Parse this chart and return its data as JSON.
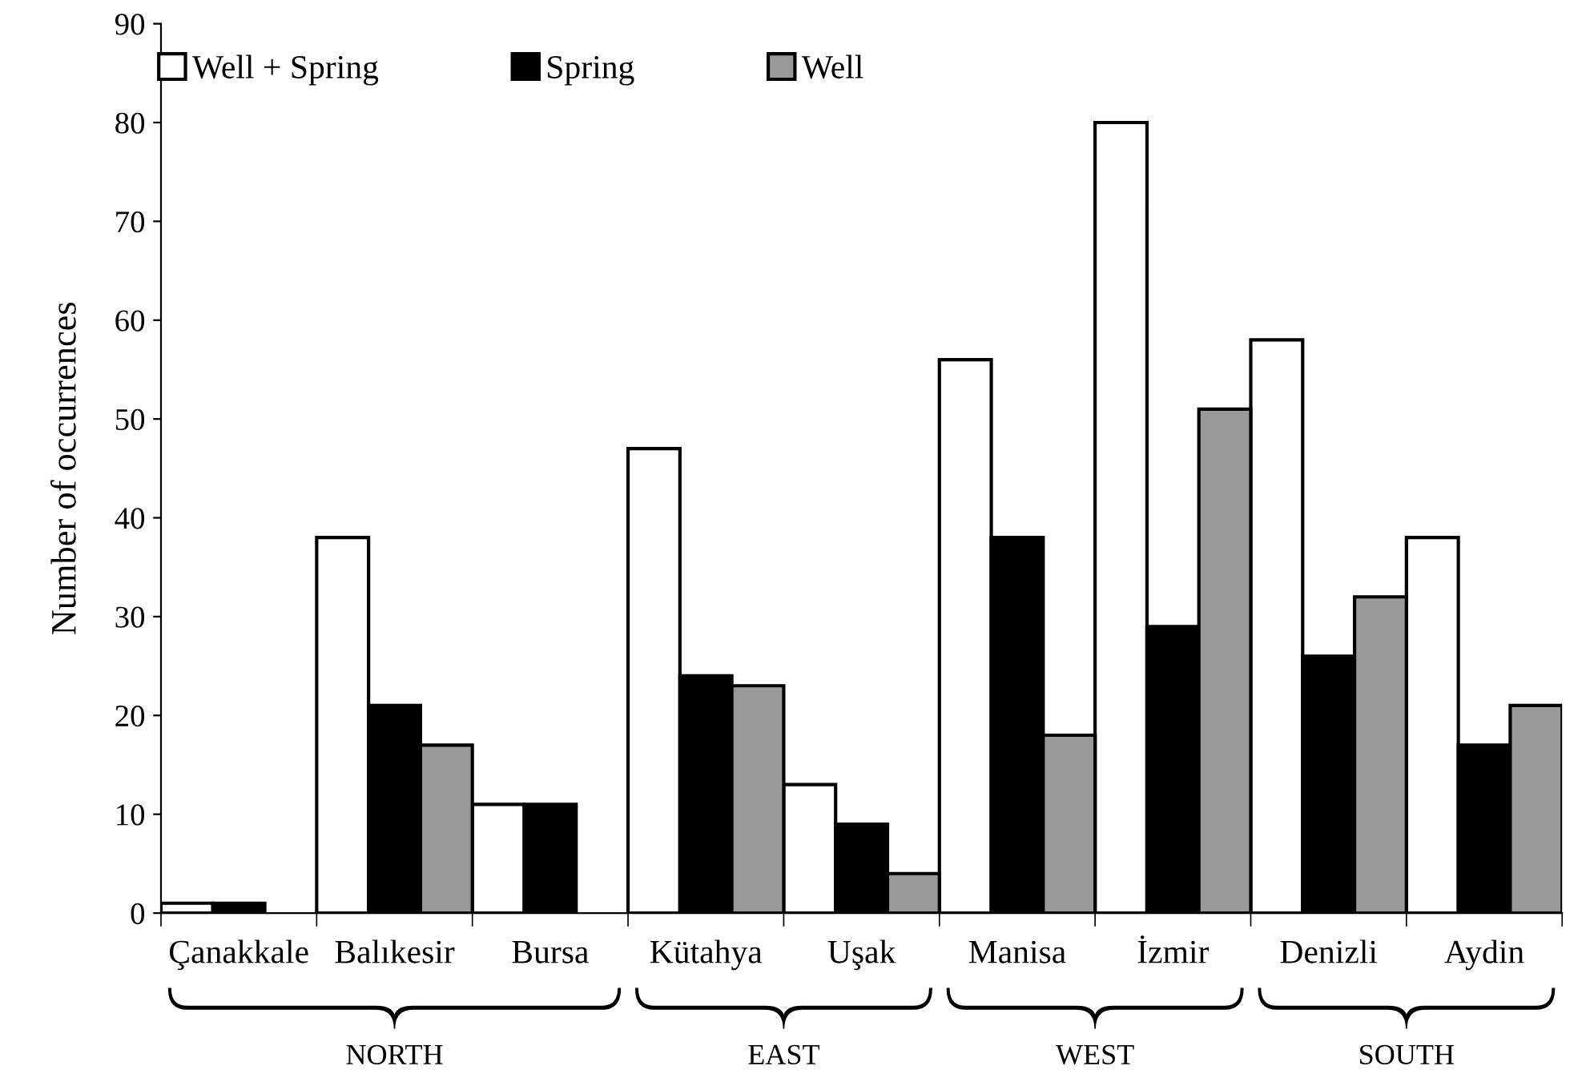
{
  "chart_data": {
    "type": "bar",
    "ylabel": "Number of occurrences",
    "categories": [
      "Çanakkale",
      "Balıkesir",
      "Bursa",
      "Kütahya",
      "Uşak",
      "Manisa",
      "İzmir",
      "Denizli",
      "Aydin"
    ],
    "series": [
      {
        "name": "Well + Spring",
        "color": "#ffffff",
        "values": [
          1,
          38,
          11,
          47,
          13,
          56,
          80,
          58,
          38
        ]
      },
      {
        "name": "Spring",
        "color": "#000000",
        "values": [
          1,
          21,
          11,
          24,
          9,
          38,
          29,
          26,
          17
        ]
      },
      {
        "name": "Well",
        "color": "#999999",
        "values": [
          null,
          17,
          null,
          23,
          4,
          18,
          51,
          32,
          21
        ]
      }
    ],
    "ylim": [
      0,
      90
    ],
    "yticks": [
      0,
      10,
      20,
      30,
      40,
      50,
      60,
      70,
      80,
      90
    ],
    "grid": false,
    "legend": "top",
    "annotations": [
      "NORTH",
      "EAST",
      "WEST",
      "SOUTH"
    ]
  }
}
